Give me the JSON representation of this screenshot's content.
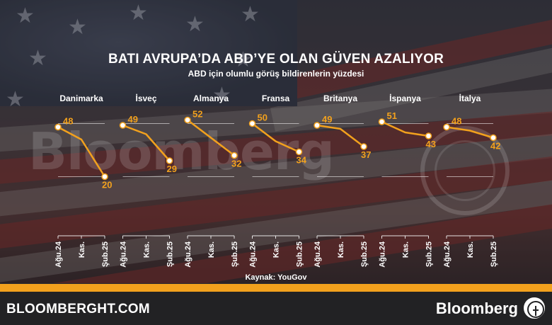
{
  "header": {
    "title": "BATI AVRUPA’DA ABD’YE OLAN GÜVEN AZALIYOR",
    "subtitle": "ABD için olumlu görüş bildirenlerin yüzdesi"
  },
  "watermark": "Bloomberg",
  "source": "Kaynak: YouGov",
  "footer": {
    "site": "BLOOMBERGHT.COM",
    "brand": "Bloomberg"
  },
  "colors": {
    "line": "#f2a11d",
    "label": "#f2a11d",
    "accent_bar": "#f2a11d"
  },
  "chart_data": {
    "type": "line",
    "x": [
      "Ağu.24",
      "Kas.",
      "Şub.25"
    ],
    "ylim": [
      15,
      55
    ],
    "grid": true,
    "panels": [
      {
        "name": "Danimarka",
        "values": [
          48,
          41,
          20
        ]
      },
      {
        "name": "İsveç",
        "values": [
          49,
          44,
          29
        ]
      },
      {
        "name": "Almanya",
        "values": [
          52,
          42,
          32
        ]
      },
      {
        "name": "Fransa",
        "values": [
          50,
          40,
          34
        ]
      },
      {
        "name": "Britanya",
        "values": [
          49,
          47,
          37
        ]
      },
      {
        "name": "İspanya",
        "values": [
          51,
          45,
          43
        ]
      },
      {
        "name": "İtalya",
        "values": [
          48,
          46,
          42
        ]
      }
    ]
  }
}
